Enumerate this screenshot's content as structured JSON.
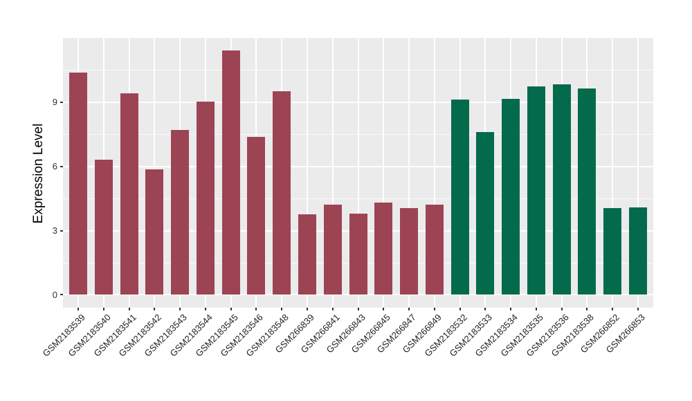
{
  "chart_data": {
    "type": "bar",
    "title": "",
    "xlabel": "",
    "ylabel": "Expression Level",
    "legend_position": "none",
    "grid": true,
    "panel_bg": "#EBEBEB",
    "grid_color": "#FFFFFF",
    "tick_color": "#333333",
    "ylim": [
      -0.6,
      12.0
    ],
    "yticks": [
      0,
      3,
      6,
      9
    ],
    "minor_yticks": [
      1.5,
      4.5,
      7.5,
      10.5
    ],
    "categories": [
      "GSM2183539",
      "GSM2183540",
      "GSM2183541",
      "GSM2183542",
      "GSM2183543",
      "GSM2183544",
      "GSM2183545",
      "GSM2183546",
      "GSM2183548",
      "GSM266839",
      "GSM266841",
      "GSM266843",
      "GSM266845",
      "GSM266847",
      "GSM266849",
      "GSM2183532",
      "GSM2183533",
      "GSM2183534",
      "GSM2183535",
      "GSM2183536",
      "GSM2183538",
      "GSM266852",
      "GSM266853"
    ],
    "values": [
      10.4,
      6.3,
      9.43,
      5.85,
      7.7,
      9.03,
      11.42,
      7.39,
      9.52,
      3.75,
      4.22,
      3.78,
      4.3,
      4.04,
      4.22,
      9.13,
      7.6,
      9.15,
      9.74,
      9.85,
      9.65,
      4.04,
      4.07
    ],
    "groups": [
      0,
      0,
      0,
      0,
      0,
      0,
      0,
      0,
      0,
      0,
      0,
      0,
      0,
      0,
      0,
      1,
      1,
      1,
      1,
      1,
      1,
      1,
      1
    ],
    "group_colors": [
      "#9C4454",
      "#036B4B"
    ]
  }
}
